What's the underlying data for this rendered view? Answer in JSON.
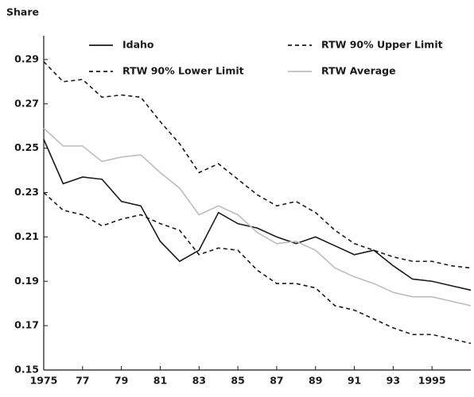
{
  "chart_data": {
    "type": "line",
    "y_label": "Share",
    "x": [
      1975,
      1976,
      1977,
      1978,
      1979,
      1980,
      1981,
      1982,
      1983,
      1984,
      1985,
      1986,
      1987,
      1988,
      1989,
      1990,
      1991,
      1992,
      1993,
      1994,
      1995,
      1996,
      1997
    ],
    "series": [
      {
        "name": "Idaho",
        "color": "#1a1a1a",
        "dash": "solid",
        "values": [
          0.254,
          0.234,
          0.237,
          0.236,
          0.226,
          0.224,
          0.208,
          0.199,
          0.204,
          0.221,
          0.216,
          0.214,
          0.21,
          0.207,
          0.21,
          0.206,
          0.202,
          0.204,
          0.197,
          0.191,
          0.19,
          0.188,
          0.186
        ]
      },
      {
        "name": "RTW 90% Upper Limit",
        "color": "#1a1a1a",
        "dash": "dashed",
        "values": [
          0.289,
          0.28,
          0.281,
          0.273,
          0.274,
          0.273,
          0.262,
          0.252,
          0.239,
          0.243,
          0.236,
          0.229,
          0.224,
          0.226,
          0.221,
          0.213,
          0.207,
          0.204,
          0.201,
          0.199,
          0.199,
          0.197,
          0.196
        ]
      },
      {
        "name": "RTW 90% Lower Limit",
        "color": "#1a1a1a",
        "dash": "dashed",
        "values": [
          0.23,
          0.222,
          0.22,
          0.215,
          0.218,
          0.22,
          0.216,
          0.213,
          0.202,
          0.205,
          0.204,
          0.195,
          0.189,
          0.189,
          0.187,
          0.179,
          0.177,
          0.173,
          0.169,
          0.166,
          0.166,
          0.164,
          0.162
        ]
      },
      {
        "name": "RTW Average",
        "color": "#bdbdbd",
        "dash": "solid",
        "values": [
          0.259,
          0.251,
          0.251,
          0.244,
          0.246,
          0.247,
          0.239,
          0.232,
          0.22,
          0.224,
          0.22,
          0.212,
          0.207,
          0.208,
          0.204,
          0.196,
          0.192,
          0.189,
          0.185,
          0.183,
          0.183,
          0.181,
          0.179
        ]
      }
    ],
    "xlim": [
      1975,
      1997
    ],
    "xticks": [
      1975,
      {
        "value": 1977,
        "label": "77"
      },
      {
        "value": 1979,
        "label": "79"
      },
      {
        "value": 1981,
        "label": "81"
      },
      {
        "value": 1983,
        "label": "83"
      },
      {
        "value": 1985,
        "label": "85"
      },
      {
        "value": 1987,
        "label": "87"
      },
      {
        "value": 1989,
        "label": "89"
      },
      {
        "value": 1991,
        "label": "91"
      },
      {
        "value": 1993,
        "label": "93"
      },
      1995
    ],
    "ylim": [
      0.15,
      0.3
    ],
    "yticks": [
      0.15,
      0.17,
      0.19,
      0.21,
      0.23,
      0.25,
      0.27,
      0.29
    ],
    "grid": false
  }
}
